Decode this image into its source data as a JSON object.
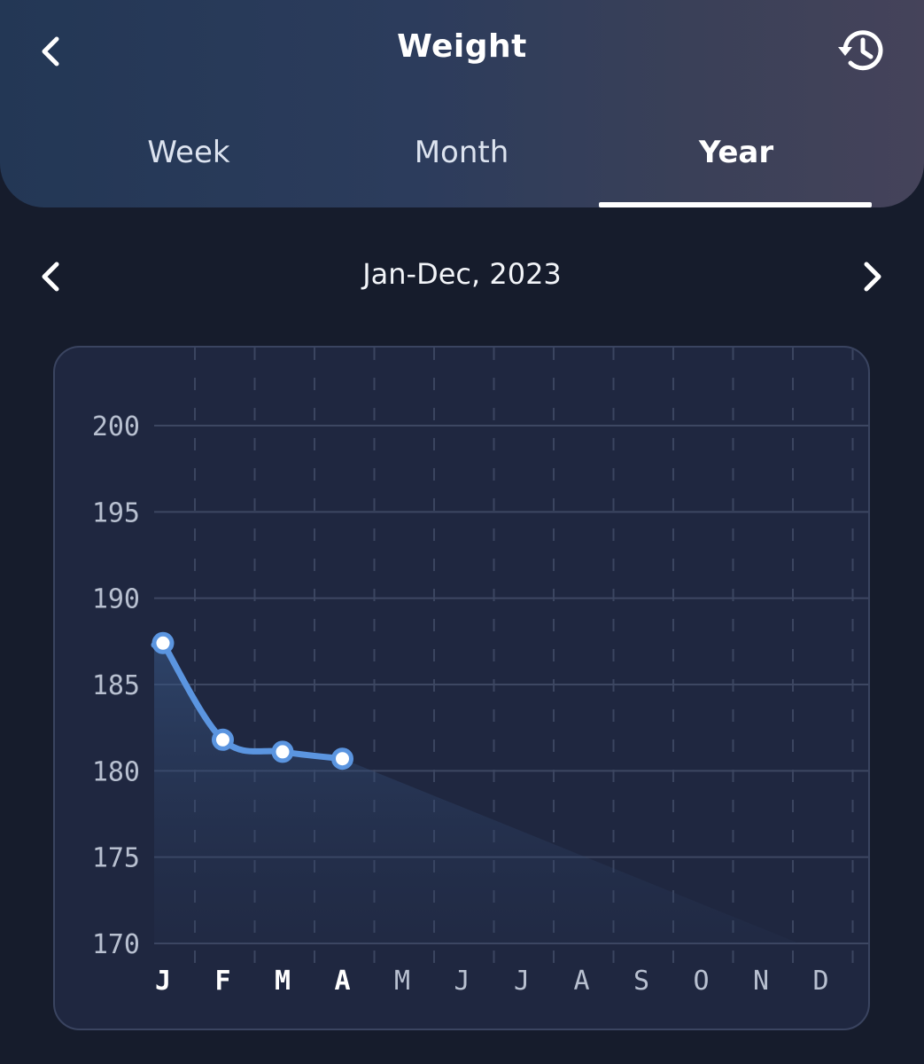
{
  "header": {
    "title": "Weight",
    "back_icon": "chevron-left-icon",
    "history_icon": "history-icon"
  },
  "tabs": [
    {
      "label": "Week",
      "active": false
    },
    {
      "label": "Month",
      "active": false
    },
    {
      "label": "Year",
      "active": true
    }
  ],
  "period": {
    "label": "Jan-Dec, 2023",
    "prev_icon": "chevron-left-icon",
    "next_icon": "chevron-right-icon"
  },
  "colors": {
    "line": "#5b95e0",
    "accent_active": "#ffffff"
  },
  "chart_data": {
    "type": "line",
    "categories": [
      "J",
      "F",
      "M",
      "A",
      "M",
      "J",
      "J",
      "A",
      "S",
      "O",
      "N",
      "D"
    ],
    "series": [
      {
        "values": [
          187.4,
          181.8,
          181.1,
          180.7,
          null,
          null,
          null,
          null,
          null,
          null,
          null,
          null
        ]
      }
    ],
    "yticks": [
      200,
      195,
      190,
      185,
      180,
      175,
      170
    ],
    "ylim": [
      170,
      200
    ],
    "grid": true
  }
}
